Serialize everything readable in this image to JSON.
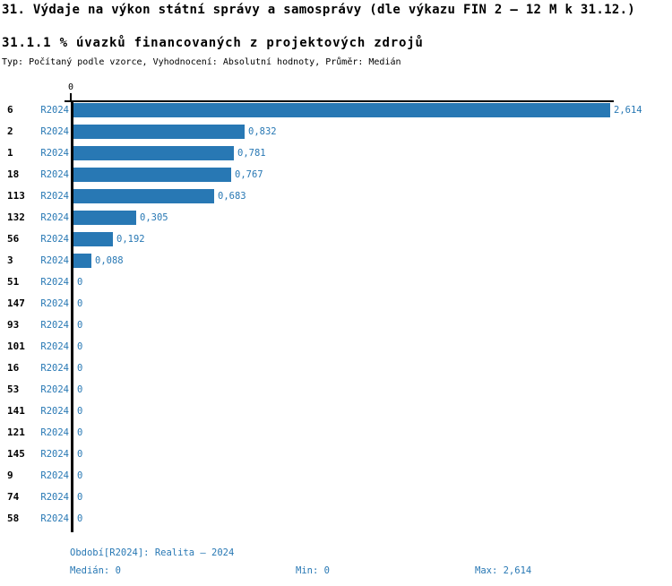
{
  "colors": {
    "accent": "#2878b4",
    "axis": "#000000",
    "background": "#ffffff"
  },
  "header": {
    "title": "31. Výdaje na výkon státní správy a samosprávy (dle výkazu FIN 2 – 12 M k 31.12.)",
    "subtitle": "31.1.1 % úvazků financovaných z projektových zdrojů",
    "meta": "Typ: Počítaný podle vzorce, Vyhodnocení: Absolutní hodnoty, Průměr: Medián"
  },
  "chart_data": {
    "type": "bar",
    "orientation": "horizontal",
    "title": "31.1.1 % úvazků financovaných z projektových zdrojů",
    "categories": [
      "6",
      "2",
      "1",
      "18",
      "113",
      "132",
      "56",
      "3",
      "51",
      "147",
      "93",
      "101",
      "16",
      "53",
      "141",
      "121",
      "145",
      "9",
      "74",
      "58"
    ],
    "series_label": "R2024",
    "values": [
      2.614,
      0.832,
      0.781,
      0.767,
      0.683,
      0.305,
      0.192,
      0.088,
      0,
      0,
      0,
      0,
      0,
      0,
      0,
      0,
      0,
      0,
      0,
      0
    ],
    "value_labels": [
      "2,614",
      "0,832",
      "0,781",
      "0,767",
      "0,683",
      "0,305",
      "0,192",
      "0,088",
      "0",
      "0",
      "0",
      "0",
      "0",
      "0",
      "0",
      "0",
      "0",
      "0",
      "0",
      "0"
    ],
    "xlim": [
      0,
      2.63
    ],
    "x_ticks": [
      "0"
    ],
    "grid": false,
    "legend": false,
    "bar_color": "#2878b4"
  },
  "footer": {
    "period": "Období[R2024]: Realita – 2024",
    "median": "Medián: 0",
    "min": "Min: 0",
    "max": "Max: 2,614"
  }
}
